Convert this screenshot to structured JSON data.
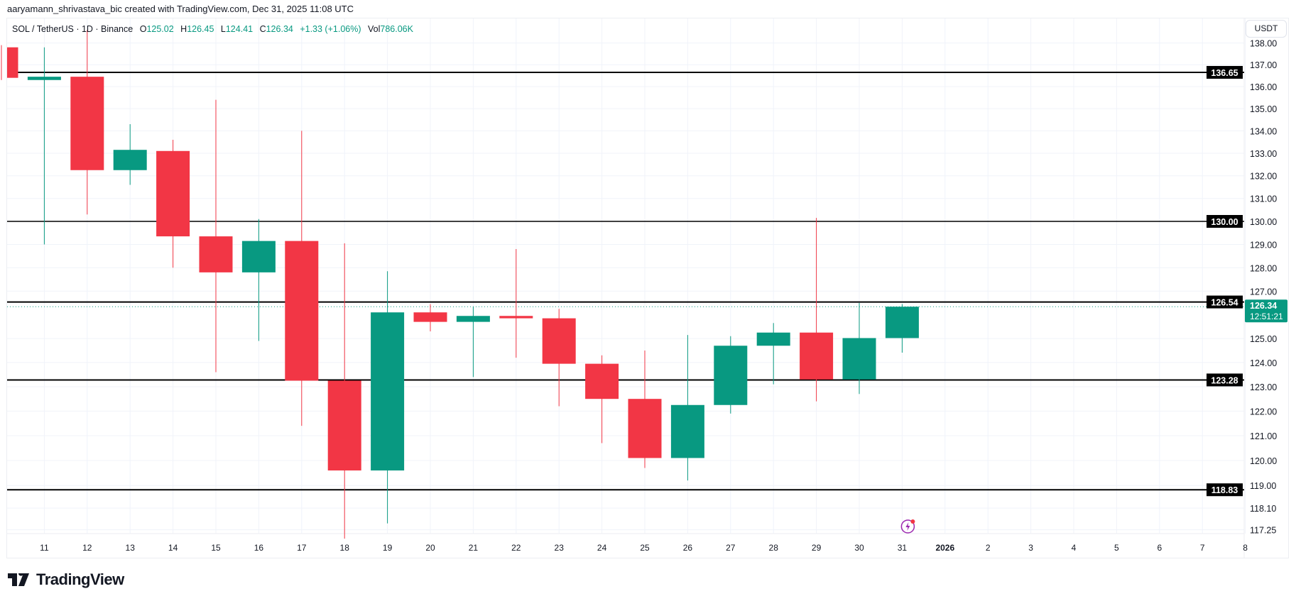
{
  "header": {
    "credit": "aaryamann_shrivastava_bic created with TradingView.com, Dec 31, 2025 11:08 UTC"
  },
  "legend": {
    "symbol": "SOL / TetherUS · 1D · Binance",
    "o_label": "O",
    "o": "125.02",
    "h_label": "H",
    "h": "126.45",
    "l_label": "L",
    "l": "124.41",
    "c_label": "C",
    "c": "126.34",
    "change": "+1.33 (+1.06%)",
    "vol_label": "Vol",
    "vol": "786.06K"
  },
  "price_axis": {
    "currency": "USDT",
    "labels": [
      "138.00",
      "137.00",
      "136.00",
      "135.00",
      "134.00",
      "133.00",
      "132.00",
      "131.00",
      "130.00",
      "129.00",
      "128.00",
      "127.00",
      "125.00",
      "124.00",
      "123.00",
      "122.00",
      "121.00",
      "120.00",
      "119.00",
      "118.10",
      "117.25"
    ],
    "current_price": "126.34",
    "countdown": "12:51:21"
  },
  "levels": [
    {
      "value": "136.65"
    },
    {
      "value": "130.00"
    },
    {
      "value": "126.54"
    },
    {
      "value": "123.28"
    },
    {
      "value": "118.83"
    }
  ],
  "time_axis": {
    "labels": [
      "11",
      "12",
      "13",
      "14",
      "15",
      "16",
      "17",
      "18",
      "19",
      "20",
      "21",
      "22",
      "23",
      "24",
      "25",
      "26",
      "27",
      "28",
      "29",
      "30",
      "31",
      "2026",
      "2",
      "3",
      "4",
      "5",
      "6",
      "7",
      "8"
    ]
  },
  "logo": {
    "text": "TradingView"
  },
  "icons": {
    "event": "lightning-icon"
  },
  "colors": {
    "up": "#089981",
    "down": "#f23645",
    "level": "#000000"
  },
  "chart_data": {
    "type": "candlestick",
    "scale": "log",
    "ylim": [
      117.0,
      138.0
    ],
    "grid": true,
    "x": [
      "Dec 10",
      "Dec 11",
      "Dec 12",
      "Dec 13",
      "Dec 14",
      "Dec 15",
      "Dec 16",
      "Dec 17",
      "Dec 18",
      "Dec 19",
      "Dec 20",
      "Dec 21",
      "Dec 22",
      "Dec 23",
      "Dec 24",
      "Dec 25",
      "Dec 26",
      "Dec 27",
      "Dec 28",
      "Dec 29",
      "Dec 30",
      "Dec 31"
    ],
    "ohlc": [
      [
        137.8,
        137.9,
        136.3,
        136.4
      ],
      [
        136.3,
        137.8,
        129.0,
        136.45
      ],
      [
        136.45,
        138.6,
        130.3,
        132.25
      ],
      [
        132.25,
        134.3,
        131.6,
        133.15
      ],
      [
        133.1,
        133.6,
        128.0,
        129.35
      ],
      [
        129.35,
        135.4,
        123.6,
        127.8
      ],
      [
        127.8,
        130.1,
        124.9,
        129.15
      ],
      [
        129.15,
        134.0,
        121.4,
        123.25
      ],
      [
        123.25,
        129.05,
        116.9,
        119.6
      ],
      [
        119.6,
        127.85,
        117.5,
        126.1
      ],
      [
        126.1,
        126.45,
        125.3,
        125.7
      ],
      [
        125.7,
        126.35,
        123.4,
        125.95
      ],
      [
        125.95,
        128.8,
        124.2,
        125.85
      ],
      [
        125.85,
        126.25,
        122.2,
        123.95
      ],
      [
        123.95,
        124.3,
        120.7,
        122.5
      ],
      [
        122.5,
        124.5,
        119.7,
        120.1
      ],
      [
        120.1,
        125.15,
        119.2,
        122.25
      ],
      [
        122.25,
        125.1,
        121.9,
        124.7
      ],
      [
        124.7,
        125.65,
        123.1,
        125.25
      ],
      [
        125.25,
        130.15,
        122.4,
        123.3
      ],
      [
        123.3,
        126.5,
        122.7,
        125.02
      ],
      [
        125.02,
        126.45,
        124.41,
        126.34
      ]
    ]
  }
}
